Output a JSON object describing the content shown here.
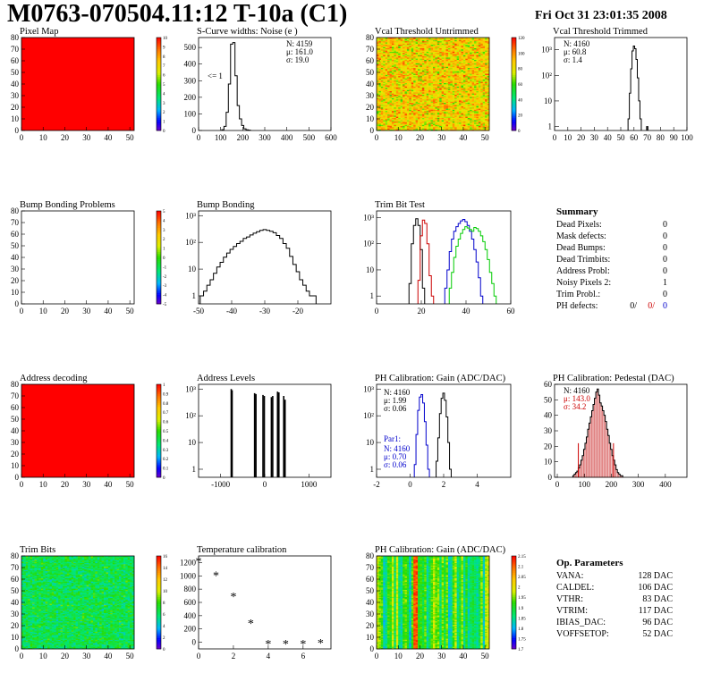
{
  "header": {
    "title": "M0763-070504.11:12 T-10a (C1)",
    "date": "Fri Oct 31 23:01:35 2008"
  },
  "chart_data": [
    {
      "id": "pixel-map",
      "type": "heatmap",
      "title": "Pixel Map",
      "xlim": [
        0,
        52
      ],
      "ylim": [
        0,
        80
      ],
      "xticks": [
        0,
        10,
        20,
        30,
        40,
        50
      ],
      "yticks": [
        0,
        10,
        20,
        30,
        40,
        50,
        60,
        70,
        80
      ],
      "zlim": [
        0,
        10
      ],
      "zticks": [
        0,
        1,
        2,
        3,
        4,
        5,
        6,
        7,
        8,
        9,
        10
      ],
      "fill": "uniform",
      "uniform_value": 10
    },
    {
      "id": "scurve-widths",
      "type": "line",
      "title": "S-Curve widths: Noise (e )",
      "xlim": [
        0,
        600
      ],
      "ylim": [
        0,
        560
      ],
      "xticks": [
        0,
        100,
        200,
        300,
        400,
        500,
        600
      ],
      "yticks": [
        0,
        100,
        200,
        300,
        400,
        500
      ],
      "bin_width": 10,
      "x": [
        110,
        120,
        130,
        140,
        150,
        160,
        170,
        180,
        190,
        200,
        210,
        220,
        230
      ],
      "y": [
        5,
        25,
        110,
        280,
        520,
        530,
        330,
        150,
        70,
        30,
        10,
        4,
        2
      ],
      "stats": [
        "N: 4159",
        "μ: 161.0",
        "σ: 19.0"
      ],
      "annotation": "<= 1"
    },
    {
      "id": "vcal-untrimmed",
      "type": "heatmap",
      "title": "Vcal Threshold Untrimmed",
      "xlim": [
        0,
        52
      ],
      "ylim": [
        0,
        80
      ],
      "xticks": [
        0,
        10,
        20,
        30,
        40,
        50
      ],
      "yticks": [
        0,
        10,
        20,
        30,
        40,
        50,
        60,
        70,
        80
      ],
      "zlim": [
        0,
        120
      ],
      "zticks": [
        0,
        20,
        40,
        60,
        80,
        100,
        120
      ],
      "fill": "random",
      "mean": 85,
      "spread": 30
    },
    {
      "id": "vcal-trimmed",
      "type": "line",
      "title": "Vcal Threshold Trimmed",
      "xlim": [
        0,
        100
      ],
      "ylim": [
        0.7,
        3000
      ],
      "yscale": "log",
      "xticks": [
        0,
        10,
        20,
        30,
        40,
        50,
        60,
        70,
        80,
        90,
        100
      ],
      "ytick_labels": [
        "1",
        "10",
        "10²",
        "10³"
      ],
      "bin_width": 1,
      "x": [
        56,
        57,
        58,
        59,
        60,
        61,
        62,
        63,
        64,
        65,
        70
      ],
      "y": [
        2,
        20,
        180,
        900,
        1400,
        1100,
        420,
        80,
        10,
        2,
        1
      ],
      "stats": [
        "N: 4160",
        "μ: 60.8",
        "σ: 1.4"
      ]
    },
    {
      "id": "bump-problems",
      "type": "heatmap",
      "title": "Bump Bonding Problems",
      "xlim": [
        0,
        52
      ],
      "ylim": [
        0,
        80
      ],
      "xticks": [
        0,
        10,
        20,
        30,
        40,
        50
      ],
      "yticks": [
        0,
        10,
        20,
        30,
        40,
        50,
        60,
        70,
        80
      ],
      "zlim": [
        -5,
        5
      ],
      "zticks": [
        -5,
        -4,
        -3,
        -2,
        -1,
        0,
        1,
        2,
        3,
        4,
        5
      ],
      "fill": "empty"
    },
    {
      "id": "bump-bonding",
      "type": "line",
      "title": "Bump Bonding",
      "xlim": [
        -50,
        -10
      ],
      "ylim": [
        0.5,
        1500
      ],
      "yscale": "log",
      "xticks": [
        -50,
        -40,
        -30,
        -20
      ],
      "ytick_labels": [
        "1",
        "10",
        "10²",
        "10³"
      ],
      "bin_width": 1,
      "x": [
        -49,
        -48,
        -47,
        -46,
        -45,
        -44,
        -43,
        -42,
        -41,
        -40,
        -39,
        -38,
        -37,
        -36,
        -35,
        -34,
        -33,
        -32,
        -31,
        -30,
        -29,
        -28,
        -27,
        -26,
        -25,
        -24,
        -23,
        -22,
        -21,
        -20,
        -19,
        -18,
        -17,
        -16,
        -15
      ],
      "y": [
        1,
        1.5,
        2.5,
        4,
        7,
        12,
        18,
        28,
        40,
        55,
        70,
        90,
        110,
        140,
        160,
        190,
        220,
        250,
        280,
        300,
        280,
        260,
        230,
        180,
        140,
        90,
        60,
        30,
        15,
        8,
        4,
        2.5,
        1.5,
        1,
        1
      ]
    },
    {
      "id": "trim-bit-test",
      "type": "line",
      "title": "Trim Bit Test",
      "xlim": [
        0,
        60
      ],
      "ylim": [
        0.5,
        1800
      ],
      "yscale": "log",
      "xticks": [
        0,
        20,
        40,
        60
      ],
      "ytick_labels": [
        "1",
        "10",
        "10²",
        "10³"
      ],
      "bin_width": 1,
      "series": [
        {
          "color": "#000000",
          "x": [
            15,
            16,
            17,
            18,
            19,
            20,
            21
          ],
          "y": [
            3,
            100,
            500,
            900,
            500,
            60,
            2
          ]
        },
        {
          "color": "#cc0000",
          "x": [
            19,
            20,
            21,
            22,
            23,
            24,
            25
          ],
          "y": [
            4,
            200,
            800,
            600,
            100,
            6,
            1
          ]
        },
        {
          "color": "#0000cc",
          "x": [
            31,
            32,
            33,
            34,
            35,
            36,
            37,
            38,
            39,
            40,
            41,
            42,
            43,
            44,
            45,
            46,
            47
          ],
          "y": [
            2,
            10,
            50,
            150,
            300,
            450,
            600,
            750,
            850,
            700,
            500,
            300,
            150,
            60,
            20,
            5,
            1
          ]
        },
        {
          "color": "#00cc00",
          "x": [
            33,
            34,
            35,
            36,
            37,
            38,
            39,
            40,
            41,
            42,
            43,
            44,
            45,
            46,
            47,
            48,
            49,
            50,
            51,
            52,
            53
          ],
          "y": [
            2,
            8,
            30,
            80,
            150,
            250,
            350,
            450,
            400,
            350,
            300,
            420,
            380,
            300,
            200,
            120,
            60,
            25,
            8,
            3,
            1
          ]
        }
      ]
    },
    {
      "id": "address-decoding",
      "type": "heatmap",
      "title": "Address decoding",
      "xlim": [
        0,
        52
      ],
      "ylim": [
        0,
        80
      ],
      "xticks": [
        0,
        10,
        20,
        30,
        40,
        50
      ],
      "yticks": [
        0,
        10,
        20,
        30,
        40,
        50,
        60,
        70,
        80
      ],
      "zlim": [
        0,
        1
      ],
      "zticks": [
        0,
        0.1,
        0.2,
        0.3,
        0.4,
        0.5,
        0.6,
        0.7,
        0.8,
        0.9,
        1
      ],
      "fill": "uniform",
      "uniform_value": 1
    },
    {
      "id": "address-levels",
      "type": "bar",
      "title": "Address Levels",
      "xlim": [
        -1500,
        1500
      ],
      "ylim": [
        0.5,
        1500
      ],
      "yscale": "log",
      "xticks": [
        -1000,
        0,
        1000
      ],
      "ytick_labels": [
        "1",
        "10",
        "10²",
        "10³"
      ],
      "x": [
        -760,
        -740,
        -230,
        -200,
        -40,
        -10,
        150,
        180,
        290,
        320,
        430,
        460
      ],
      "y": [
        1000,
        900,
        700,
        650,
        600,
        550,
        500,
        550,
        800,
        750,
        550,
        400
      ]
    },
    {
      "id": "ph-gain",
      "type": "line",
      "title": "PH Calibration: Gain (ADC/DAC)",
      "xlim": [
        -2,
        6
      ],
      "ylim": [
        0.5,
        1500
      ],
      "yscale": "log",
      "xticks": [
        -2,
        0,
        2,
        4
      ],
      "ytick_labels": [
        "1",
        "10",
        "10²",
        "10³"
      ],
      "bin_width": 0.1,
      "series": [
        {
          "color": "#000000",
          "x": [
            1.6,
            1.7,
            1.8,
            1.9,
            2.0,
            2.1,
            2.2,
            2.3,
            2.4
          ],
          "y": [
            2,
            15,
            120,
            450,
            700,
            380,
            90,
            10,
            1
          ]
        },
        {
          "color": "#0000cc",
          "x": [
            0.3,
            0.4,
            0.5,
            0.6,
            0.7,
            0.8,
            0.9,
            1.0,
            1.1
          ],
          "y": [
            1.5,
            20,
            160,
            500,
            620,
            300,
            60,
            8,
            1
          ]
        }
      ],
      "stats": [
        "N: 4160",
        "μ: 1.99",
        "σ: 0.06"
      ],
      "stats2_title": "Par1:",
      "stats2": [
        "N: 4160",
        "μ: 0.70",
        "σ: 0.06"
      ]
    },
    {
      "id": "ph-pedestal",
      "type": "bar",
      "title": "PH Calibration: Pedestal (DAC)",
      "xlim": [
        -10,
        480
      ],
      "ylim": [
        0,
        60
      ],
      "xticks": [
        0,
        100,
        200,
        300,
        400
      ],
      "yticks": [
        0,
        10,
        20,
        30,
        40,
        50,
        60
      ],
      "bin_width": 5,
      "x": [
        60,
        65,
        70,
        75,
        80,
        85,
        90,
        95,
        100,
        105,
        110,
        115,
        120,
        125,
        130,
        135,
        140,
        145,
        150,
        155,
        160,
        165,
        170,
        175,
        180,
        185,
        190,
        195,
        200,
        205,
        210,
        215,
        220,
        225,
        230,
        235,
        240
      ],
      "y": [
        1,
        2,
        3,
        4,
        6,
        8,
        11,
        14,
        18,
        22,
        26,
        31,
        35,
        39,
        43,
        47,
        51,
        55,
        57,
        53,
        48,
        46,
        43,
        40,
        36,
        31,
        27,
        22,
        18,
        14,
        11,
        8,
        5,
        3,
        2,
        1,
        1
      ],
      "markers": [
        78,
        208
      ],
      "stats": [
        "N: 4160",
        "μ: 143.0",
        "σ: 34.2"
      ]
    },
    {
      "id": "trim-bits",
      "type": "heatmap",
      "title": "Trim Bits",
      "xlim": [
        0,
        52
      ],
      "ylim": [
        0,
        80
      ],
      "xticks": [
        0,
        10,
        20,
        30,
        40,
        50
      ],
      "yticks": [
        0,
        10,
        20,
        30,
        40,
        50,
        60,
        70,
        80
      ],
      "zlim": [
        0,
        16
      ],
      "zticks": [
        0,
        2,
        4,
        6,
        8,
        10,
        12,
        14,
        16
      ],
      "fill": "random",
      "mean": 6.5,
      "spread": 2.5
    },
    {
      "id": "temperature-calibration",
      "type": "scatter",
      "title": "Temperature calibration",
      "xlim": [
        0,
        7.6
      ],
      "ylim": [
        -100,
        1300
      ],
      "xticks": [
        0,
        2,
        4,
        6
      ],
      "yticks": [
        0,
        200,
        400,
        600,
        800,
        1000,
        1200
      ],
      "x": [
        0,
        1,
        2,
        3,
        4,
        5,
        6,
        7
      ],
      "y": [
        1210,
        1000,
        680,
        280,
        -30,
        -30,
        -30,
        -20
      ]
    },
    {
      "id": "ph-gain-map",
      "type": "heatmap",
      "title": "PH Calibration: Gain (ADC/DAC)",
      "xlim": [
        0,
        52
      ],
      "ylim": [
        0,
        80
      ],
      "xticks": [
        0,
        10,
        20,
        30,
        40,
        50
      ],
      "yticks": [
        0,
        10,
        20,
        30,
        40,
        50,
        60,
        70,
        80
      ],
      "zlim": [
        1.7,
        2.15
      ],
      "zticks": [
        1.7,
        1.75,
        1.8,
        1.85,
        1.9,
        1.95,
        2.0,
        2.05,
        2.1,
        2.15
      ],
      "fill": "columns",
      "mean": 1.9,
      "spread": 0.12
    }
  ],
  "summary": {
    "title": "Summary",
    "rows": [
      {
        "label": "Dead Pixels:",
        "value": "0"
      },
      {
        "label": "Mask defects:",
        "value": "0"
      },
      {
        "label": "Dead Bumps:",
        "value": "0"
      },
      {
        "label": "Dead Trimbits:",
        "value": "0"
      },
      {
        "label": "Address Probl:",
        "value": "0"
      },
      {
        "label": "Noisy Pixels 2:",
        "value": "1"
      },
      {
        "label": "Trim Probl.:",
        "value": "0"
      }
    ],
    "ph_label": "PH defects:",
    "ph_values": [
      "0/",
      "0/",
      "0"
    ],
    "ph_colors": [
      "#000000",
      "#cc0000",
      "#0000cc"
    ]
  },
  "op_params": {
    "title": "Op. Parameters",
    "rows": [
      {
        "label": "VANA:",
        "value": "128 DAC"
      },
      {
        "label": "CALDEL:",
        "value": "106 DAC"
      },
      {
        "label": "VTHR:",
        "value": "83 DAC"
      },
      {
        "label": "VTRIM:",
        "value": "117 DAC"
      },
      {
        "label": "IBIAS_DAC:",
        "value": "96 DAC"
      },
      {
        "label": "VOFFSETOP:",
        "value": "52 DAC"
      }
    ]
  }
}
